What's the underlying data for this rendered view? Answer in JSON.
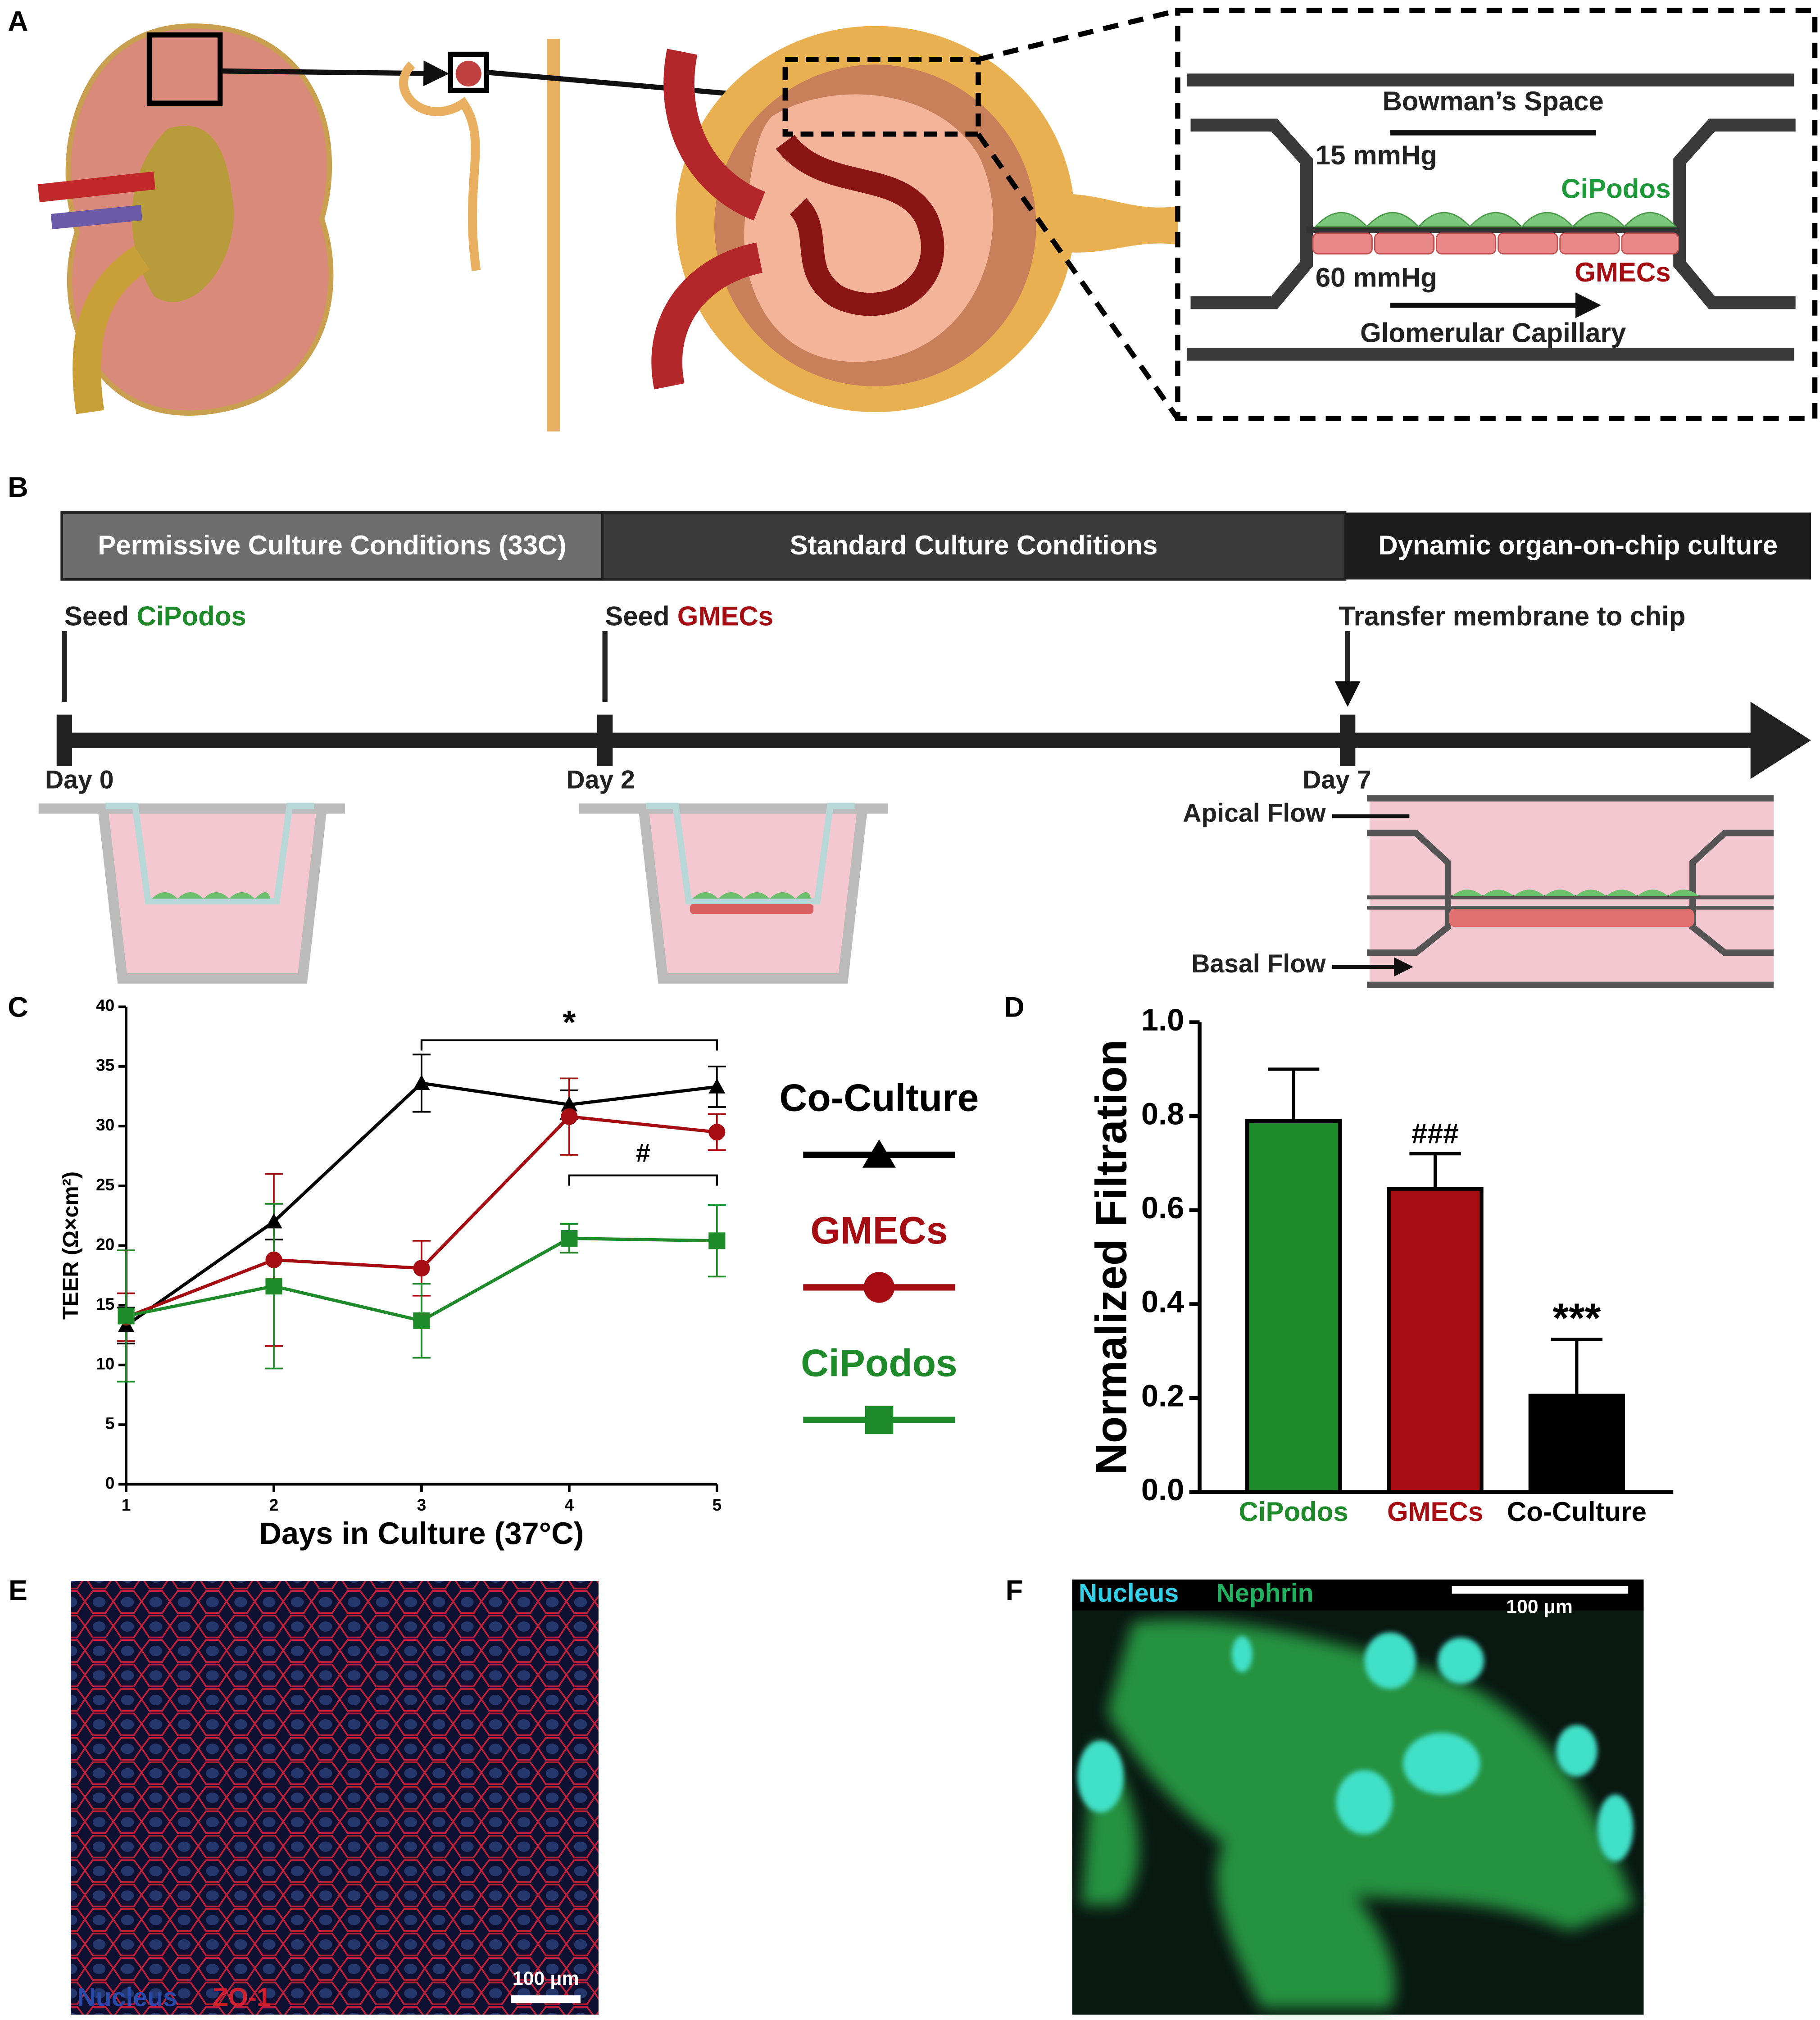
{
  "panel_labels": [
    "A",
    "B",
    "C",
    "D",
    "E",
    "F"
  ],
  "panel_a": {
    "bowmans_space": "Bowman’s Space",
    "pressure_top": "15 mmHg",
    "pressure_bottom": "60 mmHg",
    "podocytes": "CiPodos",
    "endothelial": "GMECs",
    "capillary": "Glomerular Capillary"
  },
  "panel_b": {
    "phases": [
      "Permissive Culture Conditions (33C)",
      "Standard Culture Conditions",
      "Dynamic organ-on-chip culture"
    ],
    "events": [
      {
        "prefix": "Seed",
        "cell": "CiPodos"
      },
      {
        "prefix": "Seed",
        "cell": "GMECs"
      },
      {
        "prefix": "Transfer membrane to chip"
      }
    ],
    "days": [
      "Day 0",
      "Day 2",
      "Day 7"
    ],
    "flows": [
      "Apical Flow",
      "Basal Flow"
    ]
  },
  "chart_data": [
    {
      "type": "line",
      "xlabel": "Days in Culture (37°C)",
      "ylabel": "TEER (Ω×cm²)",
      "x": [
        1,
        2,
        3,
        4,
        5
      ],
      "xlim": [
        1,
        5
      ],
      "xticks": [
        1,
        2,
        3,
        4,
        5
      ],
      "ylim": [
        0,
        40
      ],
      "yticks": [
        0,
        5,
        10,
        15,
        20,
        25,
        30,
        35,
        40
      ],
      "series": [
        {
          "name": "Co-Culture",
          "color": "#000000",
          "marker": "triangle",
          "values": [
            13.3,
            22,
            33.6,
            31.8,
            33.3
          ],
          "errors": [
            1.5,
            1.5,
            2.4,
            1.2,
            1.7
          ]
        },
        {
          "name": "GMECs",
          "color": "#a50d12",
          "marker": "circle",
          "values": [
            14,
            18.8,
            18.1,
            30.8,
            29.5
          ],
          "errors": [
            2,
            7.2,
            2.3,
            3.2,
            1.5
          ]
        },
        {
          "name": "CiPodos",
          "color": "#1e8a2a",
          "marker": "square",
          "values": [
            14.1,
            16.6,
            13.7,
            20.6,
            20.4
          ],
          "errors": [
            5.5,
            6.9,
            3.1,
            1.2,
            3
          ]
        }
      ],
      "annotations": [
        {
          "text": "*",
          "x": [
            3,
            5
          ]
        },
        {
          "text": "#",
          "x": [
            4,
            5
          ]
        }
      ]
    },
    {
      "type": "bar",
      "ylabel": "Normalized Filtration",
      "categories": [
        "CiPodos",
        "GMECs",
        "Co-Culture"
      ],
      "values": [
        0.79,
        0.645,
        0.205
      ],
      "errors": [
        0.11,
        0.075,
        0.12
      ],
      "colors": [
        "#1e8a2a",
        "#a50d12",
        "#000000"
      ],
      "annotations": [
        null,
        "###",
        "***"
      ],
      "ylim": [
        0,
        1
      ],
      "yticks": [
        {
          "value": 0,
          "label": "0.0"
        },
        {
          "value": 0.2,
          "label": "0.2"
        },
        {
          "value": 0.4,
          "label": "0.4"
        },
        {
          "value": 0.6,
          "label": "0.6"
        },
        {
          "value": 0.8,
          "label": "0.8"
        },
        {
          "value": 1,
          "label": "1.0"
        }
      ]
    }
  ],
  "panel_e": {
    "stain_1": "Nucleus",
    "stain_2": "ZO-1",
    "scale": "100 μm"
  },
  "panel_f": {
    "stain_1": "Nucleus",
    "stain_2": "Nephrin",
    "scale": "100 μm"
  }
}
